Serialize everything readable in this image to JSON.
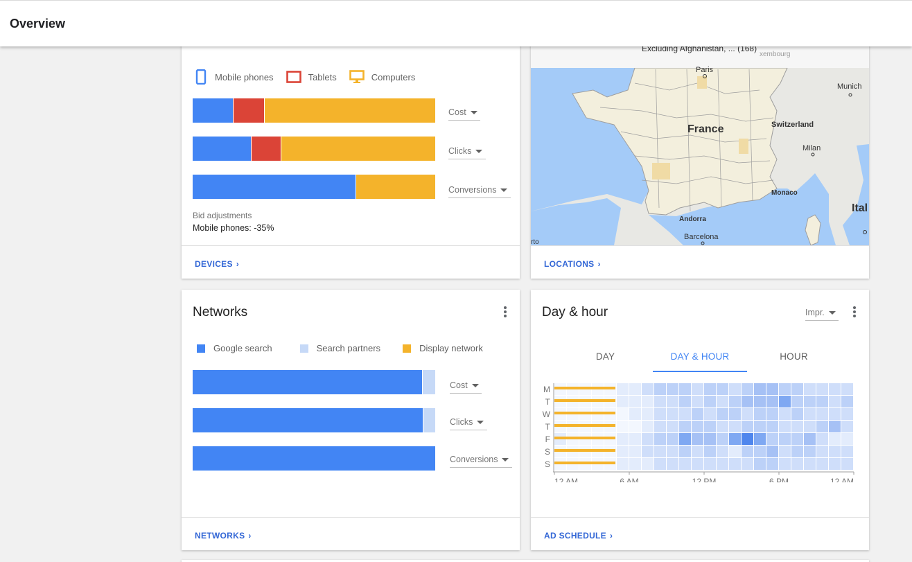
{
  "header": {
    "title": "Overview"
  },
  "devices": {
    "legend": [
      {
        "label": "Mobile phones",
        "color": "#4285f4",
        "icon": "mobile-phone-icon"
      },
      {
        "label": "Tablets",
        "color": "#db4437",
        "icon": "tablet-icon"
      },
      {
        "label": "Computers",
        "color": "#f4b32b",
        "icon": "computer-monitor-icon"
      }
    ],
    "metrics": [
      {
        "label": "Cost",
        "shares": [
          0.166,
          0.129,
          0.705
        ]
      },
      {
        "label": "Clicks",
        "shares": [
          0.24,
          0.123,
          0.637
        ]
      },
      {
        "label": "Conversions",
        "shares": [
          0.671,
          0.0,
          0.329
        ]
      }
    ],
    "bid_label": "Bid adjustments",
    "bid_value": "Mobile phones: -35%",
    "footer_link": "DEVICES"
  },
  "locations": {
    "map_banner": "Excluding Afghanistan, ... (168)",
    "labels": {
      "paris": "Paris",
      "munich": "Munich",
      "france": "France",
      "switzerland": "Switzerland",
      "milan": "Milan",
      "monaco": "Monaco",
      "italy": "Ital",
      "andorra": "Andorra",
      "barcelona": "Barcelona",
      "porto": "rto",
      "luxembourg": "xembourg"
    },
    "footer_link": "LOCATIONS"
  },
  "networks": {
    "title": "Networks",
    "legend": [
      {
        "label": "Google search",
        "color": "#4285f4"
      },
      {
        "label": "Search partners",
        "color": "#c6d9f7"
      },
      {
        "label": "Display network",
        "color": "#f4b32b"
      }
    ],
    "metrics": [
      {
        "label": "Cost",
        "shares": [
          0.946,
          0.054,
          0
        ]
      },
      {
        "label": "Clicks",
        "shares": [
          0.949,
          0.051,
          0
        ]
      },
      {
        "label": "Conversions",
        "shares": [
          1.0,
          0,
          0
        ]
      }
    ],
    "footer_link": "NETWORKS"
  },
  "dayhour": {
    "title": "Day & hour",
    "metric_select": "Impr.",
    "tabs": [
      "DAY",
      "DAY & HOUR",
      "HOUR"
    ],
    "active_tab": 1,
    "days": [
      "M",
      "T",
      "W",
      "T",
      "F",
      "S",
      "S"
    ],
    "hour_ticks": [
      "12 AM",
      "6 AM",
      "12 PM",
      "6 PM",
      "12 AM"
    ],
    "excluded_hours": 5,
    "intensity": [
      [
        0,
        0,
        0,
        0,
        0,
        1,
        1,
        2,
        3,
        3,
        3,
        2,
        3,
        3,
        2,
        3,
        4,
        4,
        3,
        3,
        2,
        2,
        2,
        2
      ],
      [
        0,
        0,
        0,
        0,
        0,
        1,
        1,
        1,
        2,
        2,
        3,
        2,
        3,
        2,
        3,
        4,
        4,
        4,
        5,
        3,
        3,
        3,
        2,
        3
      ],
      [
        0,
        0,
        0,
        0,
        0,
        0,
        1,
        1,
        2,
        2,
        2,
        3,
        2,
        3,
        3,
        2,
        3,
        3,
        2,
        3,
        2,
        2,
        2,
        2
      ],
      [
        0,
        0,
        0,
        0,
        0,
        0,
        0,
        1,
        2,
        2,
        3,
        3,
        3,
        2,
        2,
        3,
        3,
        3,
        2,
        2,
        2,
        3,
        4,
        2
      ],
      [
        1,
        0,
        0,
        0,
        0,
        1,
        1,
        2,
        3,
        3,
        5,
        4,
        4,
        3,
        5,
        6,
        5,
        3,
        3,
        3,
        4,
        2,
        1,
        1
      ],
      [
        0,
        0,
        0,
        0,
        0,
        1,
        1,
        2,
        2,
        2,
        3,
        2,
        3,
        2,
        1,
        3,
        3,
        4,
        2,
        3,
        3,
        2,
        2,
        2
      ],
      [
        0,
        0,
        0,
        0,
        0,
        1,
        1,
        1,
        2,
        2,
        2,
        2,
        2,
        2,
        2,
        2,
        3,
        3,
        2,
        2,
        2,
        2,
        2,
        2
      ]
    ],
    "footer_link": "AD SCHEDULE"
  }
}
